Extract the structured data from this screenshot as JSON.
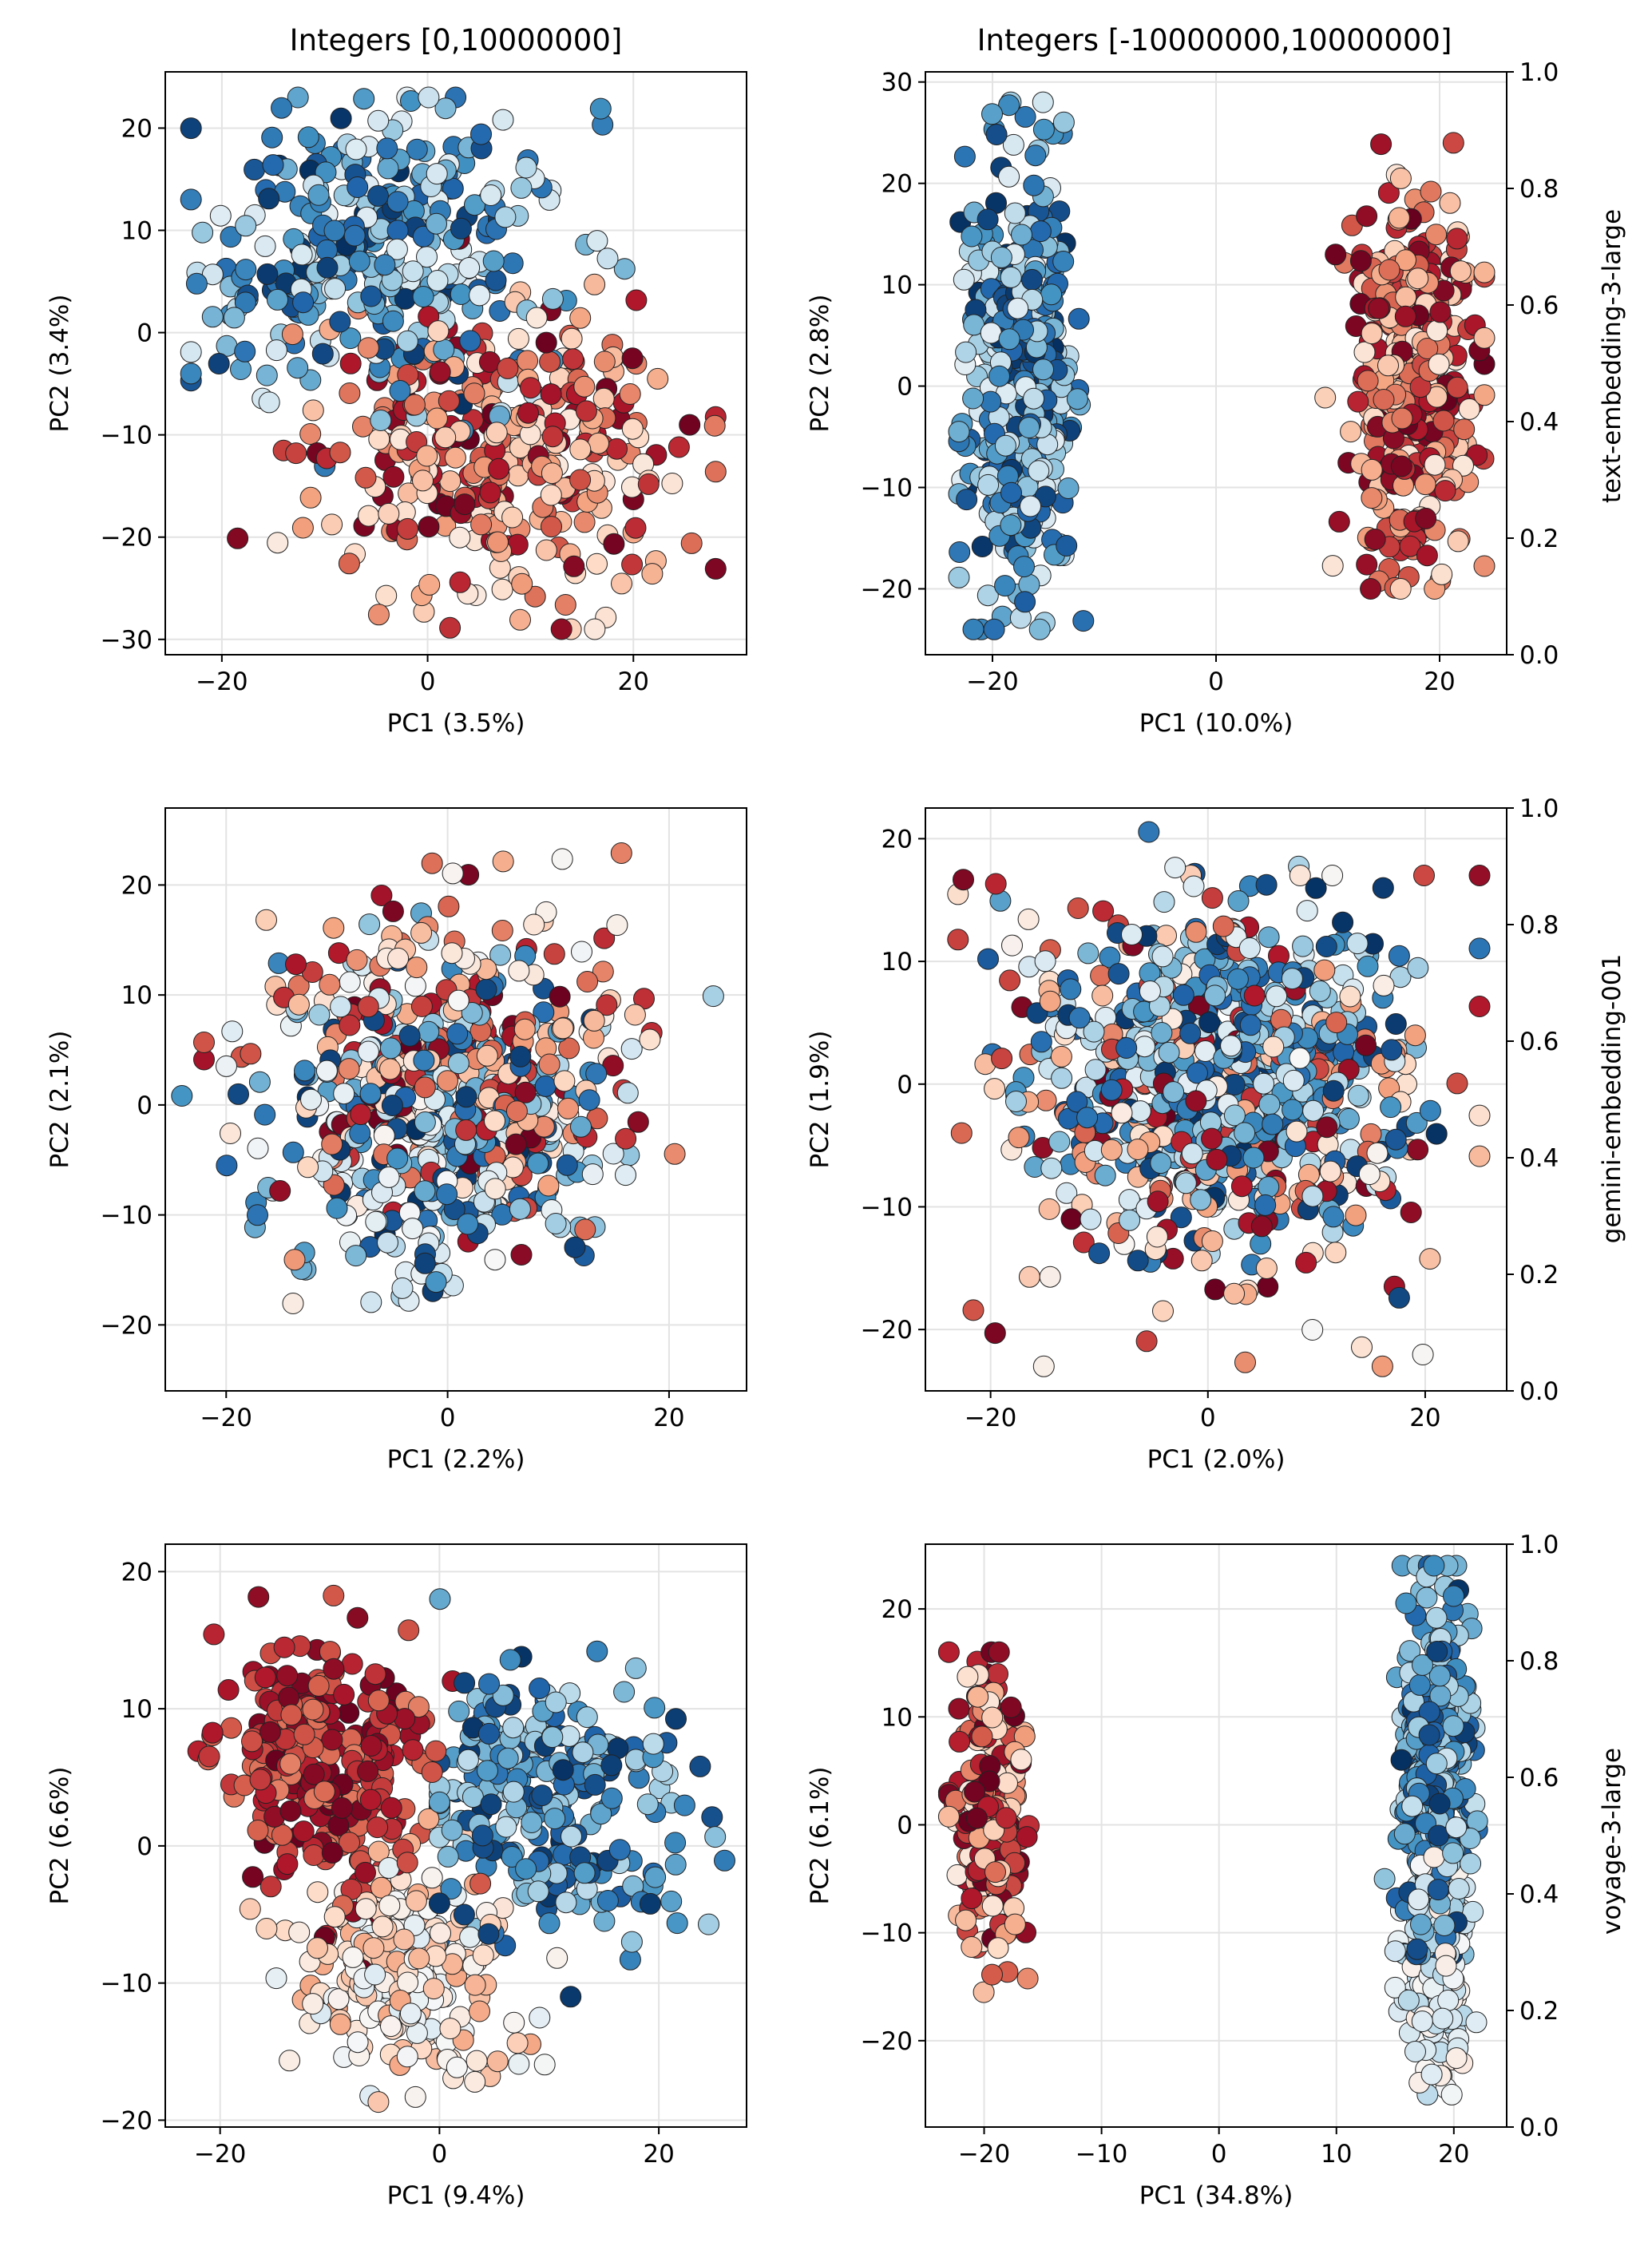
{
  "figure": {
    "col_titles": [
      "Integers [0,10000000]",
      "Integers [-10000000,10000000]"
    ],
    "row_labels": [
      "text-embedding-3-large",
      "gemini-embedding-001",
      "voyage-3-large"
    ],
    "colorbar_ticks": [
      "0.0",
      "0.2",
      "0.4",
      "0.6",
      "0.8",
      "1.0"
    ],
    "colormap": [
      "#67001f",
      "#b2182b",
      "#d6604d",
      "#f4a582",
      "#fddbc7",
      "#f7f7f7",
      "#d1e5f0",
      "#92c5de",
      "#4393c3",
      "#2166ac",
      "#053061"
    ]
  },
  "chart_data": [
    {
      "type": "scatter",
      "row": 0,
      "col": 0,
      "title": "Integers [0,10000000]",
      "xlabel": "PC1 (3.5%)",
      "ylabel": "PC2 (3.4%)",
      "xlim": [
        -25.5,
        31
      ],
      "ylim": [
        -31.5,
        25.5
      ],
      "xticks": [
        -20,
        0,
        20
      ],
      "xtick_labels": [
        "−20",
        "0",
        "20"
      ],
      "yticks": [
        -30,
        -20,
        -10,
        0,
        10,
        20
      ],
      "ytick_labels": [
        "−30",
        "−20",
        "−10",
        "0",
        "10",
        "20"
      ],
      "clusters": [
        {
          "cx": -4,
          "cy": 8,
          "sx": 9,
          "sy": 7,
          "vmin": 0.55,
          "vmax": 1.0,
          "n": 330,
          "xr": [
            -23,
            28
          ],
          "yr": [
            -16,
            23
          ]
        },
        {
          "cx": 7,
          "cy": -12,
          "sx": 9,
          "sy": 7,
          "vmin": 0.0,
          "vmax": 0.45,
          "n": 330,
          "xr": [
            -22,
            28
          ],
          "yr": [
            -29,
            20
          ]
        }
      ],
      "seed": 11
    },
    {
      "type": "scatter",
      "row": 0,
      "col": 1,
      "xlabel": "PC1 (10.0%)",
      "ylabel": "PC2 (2.8%)",
      "xlim": [
        -26,
        26
      ],
      "ylim": [
        -26.5,
        31
      ],
      "xticks": [
        -20,
        0,
        20
      ],
      "xtick_labels": [
        "−20",
        "0",
        "20"
      ],
      "yticks": [
        -20,
        -10,
        0,
        10,
        20,
        30
      ],
      "ytick_labels": [
        "−20",
        "−10",
        "0",
        "10",
        "20",
        "30"
      ],
      "clusters": [
        {
          "cx": -17.5,
          "cy": 0,
          "sx": 2.2,
          "sy": 11,
          "vmin": 0.55,
          "vmax": 1.0,
          "n": 450,
          "xr": [
            -23,
            -7
          ],
          "yr": [
            -24,
            28
          ]
        },
        {
          "cx": 17.5,
          "cy": 0,
          "sx": 2.6,
          "sy": 9,
          "vmin": 0.0,
          "vmax": 0.45,
          "n": 420,
          "xr": [
            5,
            24
          ],
          "yr": [
            -20,
            24
          ]
        }
      ],
      "seed": 23
    },
    {
      "type": "scatter",
      "row": 1,
      "col": 0,
      "xlabel": "PC1 (2.2%)",
      "ylabel": "PC2 (2.1%)",
      "xlim": [
        -25.5,
        27
      ],
      "ylim": [
        -26,
        27
      ],
      "xticks": [
        -20,
        0,
        20
      ],
      "xtick_labels": [
        "−20",
        "0",
        "20"
      ],
      "yticks": [
        -20,
        -10,
        0,
        10,
        20
      ],
      "ytick_labels": [
        "−20",
        "−10",
        "0",
        "10",
        "20"
      ],
      "clusters": [
        {
          "cx": 0,
          "cy": -2,
          "sx": 8,
          "sy": 7,
          "vmin": 0.5,
          "vmax": 1.0,
          "n": 340,
          "xr": [
            -24,
            24
          ],
          "yr": [
            -23,
            20
          ]
        },
        {
          "cx": 1,
          "cy": 3,
          "sx": 8,
          "sy": 7,
          "vmin": 0.0,
          "vmax": 0.5,
          "n": 320,
          "xr": [
            -22,
            25
          ],
          "yr": [
            -21,
            25
          ]
        }
      ],
      "seed": 37
    },
    {
      "type": "scatter",
      "row": 1,
      "col": 1,
      "xlabel": "PC1 (2.0%)",
      "ylabel": "PC2 (1.9%)",
      "xlim": [
        -26,
        27.5
      ],
      "ylim": [
        -25,
        22.5
      ],
      "xticks": [
        -20,
        0,
        20
      ],
      "xtick_labels": [
        "−20",
        "0",
        "20"
      ],
      "yticks": [
        -20,
        -10,
        0,
        10,
        20
      ],
      "ytick_labels": [
        "−20",
        "−10",
        "0",
        "10",
        "20"
      ],
      "clusters": [
        {
          "cx": 1,
          "cy": 1,
          "sx": 8,
          "sy": 6.5,
          "vmin": 0.55,
          "vmax": 1.0,
          "n": 560,
          "xr": [
            -22,
            25
          ],
          "yr": [
            -21,
            21
          ]
        },
        {
          "cx": 0,
          "cy": -2,
          "sx": 10,
          "sy": 8,
          "vmin": 0.0,
          "vmax": 0.5,
          "n": 300,
          "xr": [
            -23,
            25
          ],
          "yr": [
            -23,
            17
          ]
        }
      ],
      "seed": 41
    },
    {
      "type": "scatter",
      "row": 2,
      "col": 0,
      "xlabel": "PC1 (9.4%)",
      "ylabel": "PC2 (6.6%)",
      "xlim": [
        -25,
        28
      ],
      "ylim": [
        -20.5,
        22
      ],
      "xticks": [
        -20,
        0,
        20
      ],
      "xtick_labels": [
        "−20",
        "0",
        "20"
      ],
      "yticks": [
        -20,
        -10,
        0,
        10,
        20
      ],
      "ytick_labels": [
        "−20",
        "−10",
        "0",
        "10",
        "20"
      ],
      "clusters": [
        {
          "cx": -10,
          "cy": 6,
          "sx": 5,
          "sy": 5,
          "vmin": 0.0,
          "vmax": 0.25,
          "n": 260,
          "xr": [
            -22,
            5
          ],
          "yr": [
            -13,
            20
          ]
        },
        {
          "cx": -3,
          "cy": -9,
          "sx": 5,
          "sy": 4,
          "vmin": 0.3,
          "vmax": 0.58,
          "n": 220,
          "xr": [
            -18,
            12
          ],
          "yr": [
            -19,
            2
          ]
        },
        {
          "cx": 10,
          "cy": 3,
          "sx": 6,
          "sy": 5,
          "vmin": 0.62,
          "vmax": 1.0,
          "n": 260,
          "xr": [
            0,
            26
          ],
          "yr": [
            -11,
            18
          ]
        }
      ],
      "seed": 53
    },
    {
      "type": "scatter",
      "row": 2,
      "col": 1,
      "xlabel": "PC1 (34.8%)",
      "ylabel": "PC2 (6.1%)",
      "xlim": [
        -25,
        24.5
      ],
      "ylim": [
        -28,
        26
      ],
      "xticks": [
        -20,
        -10,
        0,
        10,
        20
      ],
      "xtick_labels": [
        "−20",
        "−10",
        "0",
        "10",
        "20"
      ],
      "yticks": [
        -20,
        -10,
        0,
        10,
        20
      ],
      "ytick_labels": [
        "−20",
        "−10",
        "0",
        "10",
        "20"
      ],
      "clusters": [
        {
          "cx": -19.5,
          "cy": 0,
          "sx": 1.3,
          "sy": 6,
          "vmin": 0.0,
          "vmax": 0.45,
          "n": 230,
          "xr": [
            -23,
            -13
          ],
          "yr": [
            -18,
            16
          ]
        },
        {
          "cx": 18.5,
          "cy": 3,
          "sx": 1.4,
          "sy": 9,
          "vmin": 0.6,
          "vmax": 1.0,
          "n": 420,
          "xr": [
            14,
            22
          ],
          "yr": [
            -12,
            24
          ]
        },
        {
          "cx": 18.5,
          "cy": -12,
          "sx": 1.3,
          "sy": 5,
          "vmin": 0.45,
          "vmax": 0.65,
          "n": 180,
          "xr": [
            15,
            22
          ],
          "yr": [
            -25,
            -3
          ]
        }
      ],
      "seed": 67
    }
  ]
}
